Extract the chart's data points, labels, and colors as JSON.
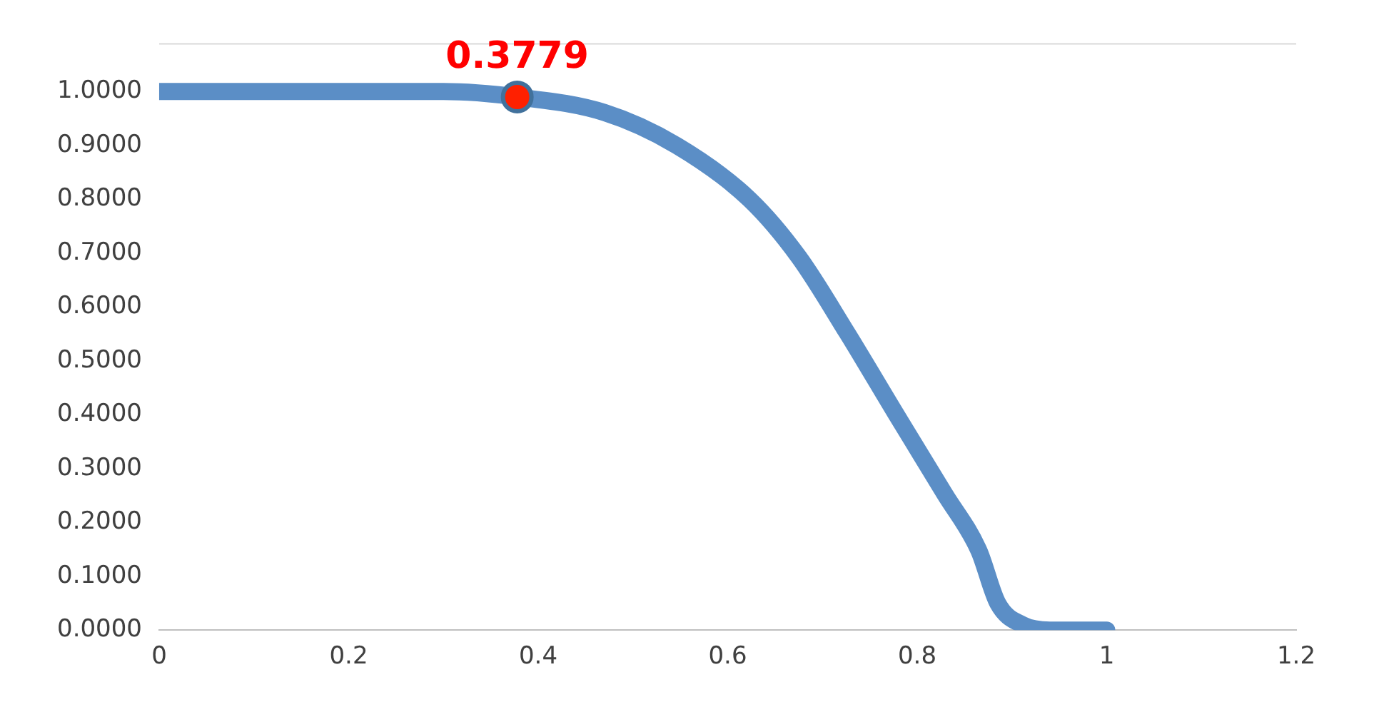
{
  "chart_data": {
    "type": "line",
    "xlim": [
      0,
      1.2
    ],
    "xticks": [
      0,
      0.2,
      0.4,
      0.6,
      0.8,
      1,
      1.2
    ],
    "ylim": [
      0,
      1.09
    ],
    "yticks": [
      {
        "value": 0,
        "label": "0.0000"
      },
      {
        "value": 0.1,
        "label": "0.1000"
      },
      {
        "value": 0.2,
        "label": "0.2000"
      },
      {
        "value": 0.3,
        "label": "0.3000"
      },
      {
        "value": 0.4,
        "label": "0.4000"
      },
      {
        "value": 0.5,
        "label": "0.5000"
      },
      {
        "value": 0.6,
        "label": "0.6000"
      },
      {
        "value": 0.7,
        "label": "0.7000"
      },
      {
        "value": 0.8,
        "label": "0.8000"
      },
      {
        "value": 0.9,
        "label": "0.9000"
      },
      {
        "value": 1,
        "label": "1.0000"
      }
    ],
    "grid": false,
    "legend": false,
    "marker": "none",
    "line_style": "solid",
    "series": [
      {
        "color": "#5b8ec6",
        "x": [
          0,
          0.1,
          0.2,
          0.3,
          0.3779,
          0.47,
          0.546,
          0.623,
          0.675,
          0.726,
          0.777,
          0.829,
          0.865,
          0.885,
          0.911,
          0.94,
          1.0
        ],
        "values": [
          1.0,
          1.0,
          1.0,
          1.0,
          0.99,
          0.961,
          0.9,
          0.8,
          0.693,
          0.552,
          0.403,
          0.253,
          0.148,
          0.05,
          0.01,
          0,
          0
        ]
      },
      {
        "type": "scatter",
        "marker": "circle",
        "color": "#ff2000",
        "x": [
          0.3779
        ],
        "values": [
          0.99
        ]
      }
    ],
    "annotations": [
      {
        "text": "0.3779",
        "x": 0.3779,
        "y": 0.99
      }
    ]
  }
}
